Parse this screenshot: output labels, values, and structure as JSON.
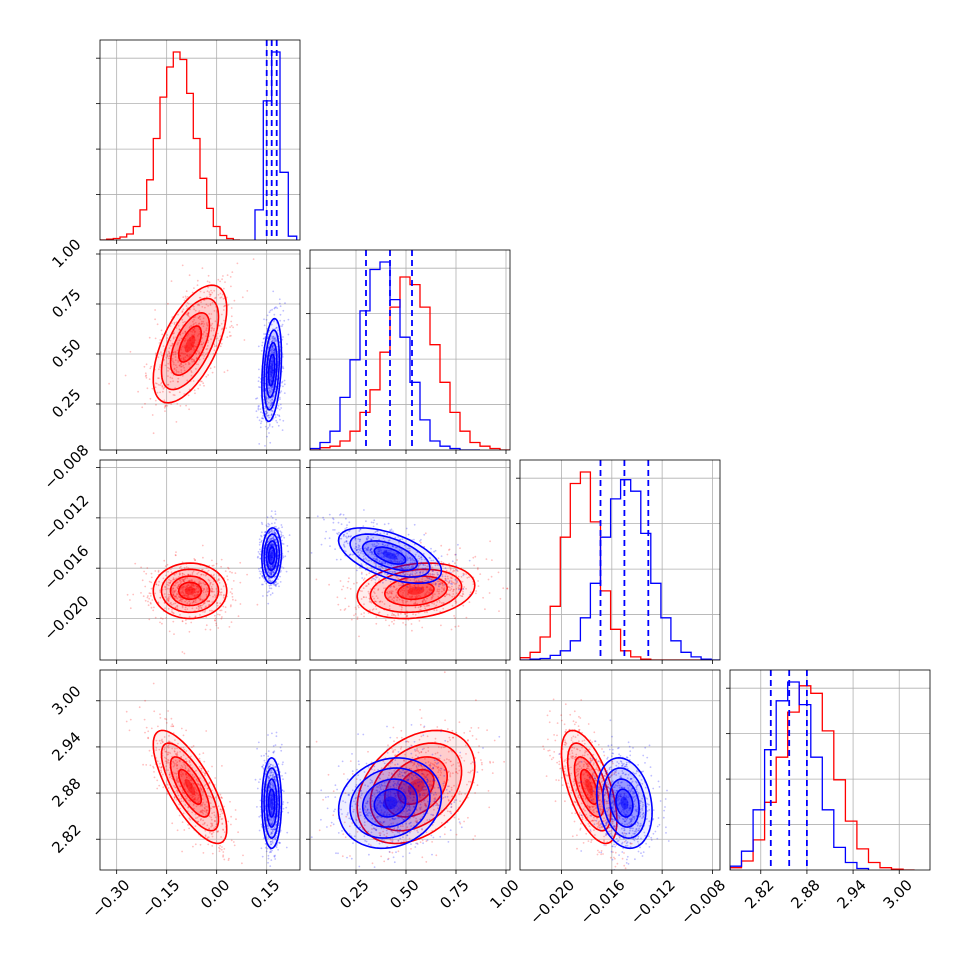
{
  "chart_data": {
    "type": "corner",
    "title": "",
    "grid": true,
    "colors": {
      "red": "#ff0000",
      "blue": "#0000ff"
    },
    "parameters": [
      {
        "index": 0,
        "range": [
          -0.35,
          0.25
        ],
        "ticks": [
          -0.3,
          -0.15,
          0.0,
          0.15
        ],
        "tick_labels": [
          "−0.30",
          "−0.15",
          "0.00",
          "0.15"
        ],
        "blue_quantiles": [
          0.15,
          0.165,
          0.18
        ]
      },
      {
        "index": 1,
        "range": [
          0.02,
          1.02
        ],
        "ticks": [
          0.25,
          0.5,
          0.75,
          1.0
        ],
        "tick_labels": [
          "0.25",
          "0.50",
          "0.75",
          "1.00"
        ],
        "blue_quantiles": [
          0.3,
          0.42,
          0.53
        ]
      },
      {
        "index": 2,
        "range": [
          -0.0233,
          -0.0074
        ],
        "ticks": [
          -0.02,
          -0.016,
          -0.012,
          -0.008
        ],
        "tick_labels": [
          "−0.020",
          "−0.016",
          "−0.012",
          "−0.008"
        ],
        "blue_quantiles": [
          -0.0169,
          -0.015,
          -0.0131
        ]
      },
      {
        "index": 3,
        "range": [
          2.78,
          3.04
        ],
        "ticks": [
          2.82,
          2.88,
          2.94,
          3.0
        ],
        "tick_labels": [
          "2.82",
          "2.88",
          "2.94",
          "3.00"
        ],
        "blue_quantiles": [
          2.833,
          2.857,
          2.88
        ]
      }
    ],
    "series": [
      {
        "color": "red",
        "means": [
          -0.08,
          0.55,
          -0.0178,
          2.888
        ],
        "sds": [
          0.045,
          0.12,
          0.0009,
          0.03
        ],
        "corr": [
          [
            0,
            1,
            0.6
          ],
          [
            0,
            3,
            -0.75
          ],
          [
            1,
            2,
            0.2
          ],
          [
            1,
            3,
            0.35
          ],
          [
            2,
            3,
            -0.6
          ]
        ],
        "histograms": [
          {
            "edges": [
              -0.35,
              -0.33,
              -0.31,
              -0.29,
              -0.27,
              -0.25,
              -0.23,
              -0.21,
              -0.19,
              -0.17,
              -0.15,
              -0.13,
              -0.11,
              -0.09,
              -0.07,
              -0.05,
              -0.03,
              -0.01,
              0.01,
              0.03,
              0.05,
              0.07
            ],
            "counts": [
              0,
              1,
              2,
              4,
              8,
              18,
              40,
              80,
              135,
              190,
              230,
              250,
              240,
              195,
              135,
              82,
              42,
              18,
              6,
              2,
              0
            ]
          },
          {
            "edges": [
              0.02,
              0.07,
              0.12,
              0.17,
              0.22,
              0.27,
              0.32,
              0.37,
              0.42,
              0.47,
              0.52,
              0.57,
              0.62,
              0.67,
              0.72,
              0.77,
              0.82,
              0.87,
              0.92,
              0.97,
              1.02
            ],
            "counts": [
              0,
              3,
              5,
              12,
              25,
              50,
              80,
              130,
              190,
              230,
              220,
              190,
              140,
              90,
              50,
              25,
              10,
              5,
              2,
              0
            ]
          },
          {
            "edges": [
              -0.0233,
              -0.0225,
              -0.0217,
              -0.0209,
              -0.0201,
              -0.0193,
              -0.0185,
              -0.0177,
              -0.0169,
              -0.0161,
              -0.0153,
              -0.0145,
              -0.0137,
              -0.0129,
              -0.0121,
              -0.0113,
              -0.0105,
              -0.0097,
              -0.0089,
              -0.0081
            ],
            "counts": [
              3,
              10,
              30,
              70,
              160,
              230,
              245,
              180,
              90,
              40,
              12,
              4,
              1,
              0,
              0,
              0,
              0,
              0,
              0
            ]
          },
          {
            "edges": [
              2.78,
              2.795,
              2.81,
              2.825,
              2.84,
              2.855,
              2.87,
              2.885,
              2.9,
              2.915,
              2.93,
              2.945,
              2.96,
              2.975,
              2.99,
              3.005,
              3.02
            ],
            "counts": [
              3,
              12,
              40,
              90,
              150,
              210,
              245,
              235,
              185,
              120,
              65,
              28,
              10,
              3,
              1,
              0
            ]
          }
        ]
      },
      {
        "color": "blue",
        "means": [
          0.165,
          0.42,
          -0.015,
          2.867
        ],
        "sds": [
          0.012,
          0.105,
          0.0009,
          0.024
        ],
        "corr": [
          [
            0,
            1,
            0.3
          ],
          [
            0,
            2,
            0.1
          ],
          [
            1,
            2,
            -0.55
          ],
          [
            1,
            3,
            0.15
          ],
          [
            2,
            3,
            -0.2
          ]
        ],
        "histograms": [
          {
            "edges": [
              0.115,
              0.14,
              0.165,
              0.19,
              0.215,
              0.24
            ],
            "counts": [
              40,
              185,
              250,
              90,
              5
            ]
          },
          {
            "edges": [
              0.02,
              0.07,
              0.12,
              0.17,
              0.22,
              0.27,
              0.32,
              0.37,
              0.42,
              0.47,
              0.52,
              0.57,
              0.62,
              0.67,
              0.72,
              0.77,
              0.82,
              0.87
            ],
            "counts": [
              2,
              10,
              25,
              70,
              120,
              185,
              240,
              250,
              200,
              150,
              90,
              40,
              12,
              5,
              2,
              0,
              0
            ]
          },
          {
            "edges": [
              -0.0233,
              -0.0225,
              -0.0217,
              -0.0209,
              -0.0201,
              -0.0193,
              -0.0185,
              -0.0177,
              -0.0169,
              -0.0161,
              -0.0153,
              -0.0145,
              -0.0137,
              -0.0129,
              -0.0121,
              -0.0113,
              -0.0105,
              -0.0097,
              -0.0089,
              -0.0081,
              -0.0074
            ],
            "counts": [
              0,
              1,
              2,
              6,
              12,
              25,
              55,
              100,
              160,
              210,
              235,
              220,
              165,
              100,
              55,
              25,
              10,
              4,
              1,
              0
            ]
          },
          {
            "edges": [
              2.78,
              2.795,
              2.81,
              2.825,
              2.84,
              2.855,
              2.87,
              2.885,
              2.9,
              2.915,
              2.93,
              2.945,
              2.96
            ],
            "counts": [
              5,
              25,
              80,
              160,
              225,
              250,
              220,
              150,
              80,
              30,
              10,
              2
            ]
          }
        ]
      }
    ]
  }
}
